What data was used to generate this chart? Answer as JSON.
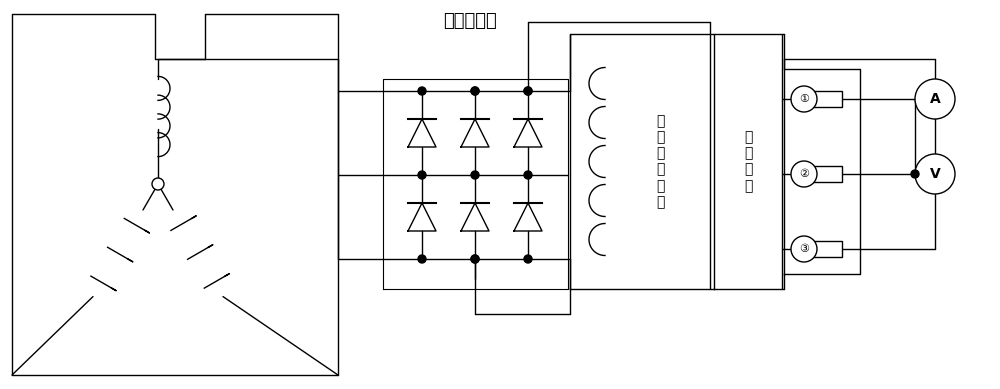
{
  "bg_color": "#ffffff",
  "label_rectifier": "旋转整流器",
  "label_main": "主\n发\n励\n磁\n绕\n组",
  "label_slip": "滑\n环\n组\n件",
  "figsize": [
    10.0,
    3.89
  ],
  "dpi": 100,
  "lw": 1.0
}
